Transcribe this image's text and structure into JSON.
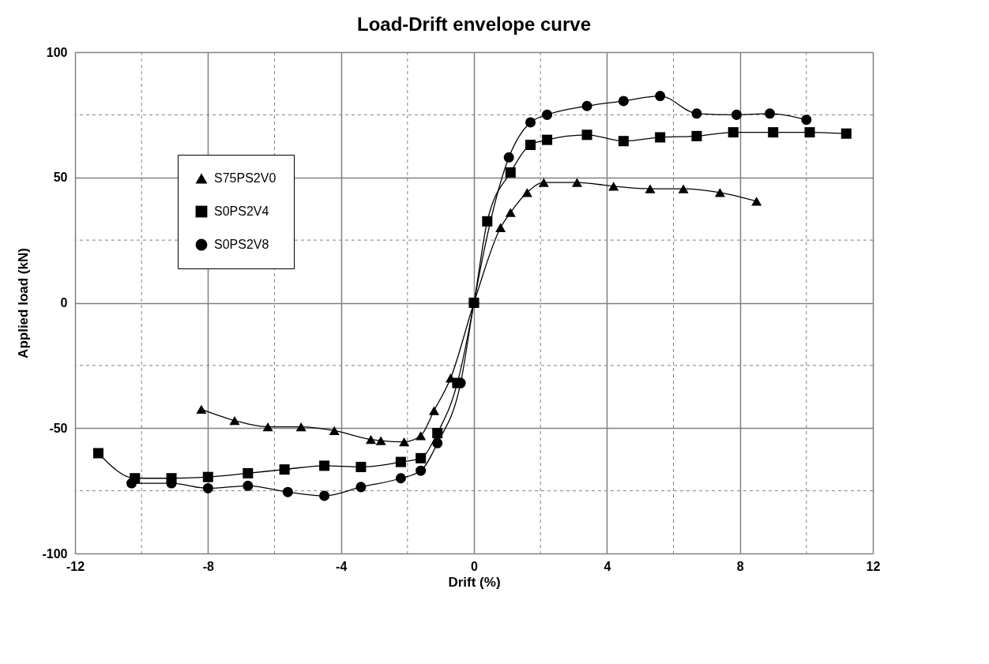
{
  "chart_data": {
    "type": "line",
    "title": "Load-Drift envelope curve",
    "xlabel": "Drift (%)",
    "ylabel": "Applied load (kN)",
    "xlim": [
      -12,
      12
    ],
    "xticks": [
      -12,
      -8,
      -4,
      0,
      4,
      8,
      12
    ],
    "ylim": [
      -100,
      100
    ],
    "yticks": [
      -100,
      -50,
      0,
      50,
      100
    ],
    "grid": true,
    "legend": "top left",
    "line_style": "solid",
    "series": [
      {
        "name": "S75PS2V0",
        "color": "#000000",
        "marker": "triangle",
        "x": [
          -8.2,
          -7.2,
          -6.2,
          -5.2,
          -4.2,
          -3.1,
          -2.8,
          -2.1,
          -1.6,
          -1.2,
          -0.7,
          0,
          0.8,
          1.1,
          1.6,
          2.1,
          3.1,
          4.2,
          5.3,
          6.3,
          7.4,
          8.5
        ],
        "values": [
          -42.5,
          -47,
          -49.5,
          -49.5,
          -51,
          -54.5,
          -55,
          -55.5,
          -53,
          -43,
          -30,
          0,
          30,
          36,
          44,
          48,
          48,
          46.5,
          45.5,
          45.5,
          44,
          40.5
        ]
      },
      {
        "name": "S0PS2V4",
        "color": "#000000",
        "marker": "square",
        "x": [
          -11.3,
          -10.2,
          -9.1,
          -8,
          -6.8,
          -5.7,
          -4.5,
          -3.4,
          -2.2,
          -1.6,
          -1.1,
          -0.5,
          0,
          0.4,
          1.1,
          1.7,
          2.2,
          3.4,
          4.5,
          5.6,
          6.7,
          7.8,
          9,
          10.1,
          11.2
        ],
        "values": [
          -60,
          -70,
          -70,
          -69.5,
          -68,
          -66.5,
          -65,
          -65.5,
          -63.5,
          -62,
          -52,
          -32,
          0,
          32.5,
          52,
          63,
          65,
          67,
          64.5,
          66,
          66.5,
          68,
          68,
          68,
          67.5
        ]
      },
      {
        "name": "S0PS2V8",
        "color": "#000000",
        "marker": "circle",
        "x": [
          -10.3,
          -9.1,
          -8,
          -6.8,
          -5.6,
          -4.5,
          -3.4,
          -2.2,
          -1.6,
          -1.1,
          -0.4,
          0,
          1.05,
          1.7,
          2.2,
          3.4,
          4.5,
          5.6,
          6.7,
          7.9,
          8.9,
          10
        ],
        "values": [
          -72,
          -72,
          -74,
          -73,
          -75.5,
          -77,
          -73.5,
          -70,
          -67,
          -56,
          -32,
          0,
          58,
          72,
          75,
          78.5,
          80.5,
          82.5,
          75.5,
          75,
          75.5,
          73
        ]
      }
    ]
  }
}
